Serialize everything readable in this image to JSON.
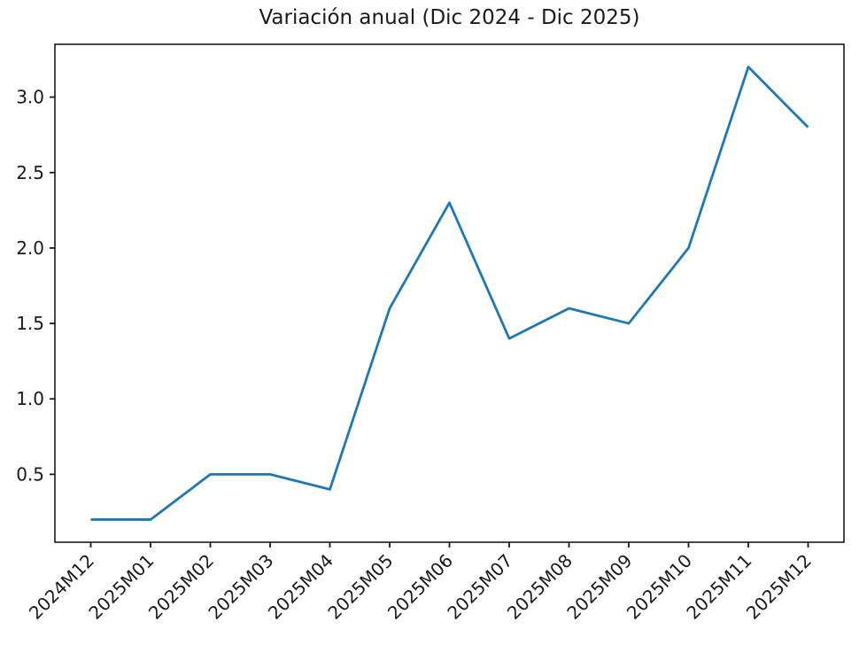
{
  "chart_data": {
    "type": "line",
    "title": "Variación anual (Dic 2024 - Dic 2025)",
    "categories": [
      "2024M12",
      "2025M01",
      "2025M02",
      "2025M03",
      "2025M04",
      "2025M05",
      "2025M06",
      "2025M07",
      "2025M08",
      "2025M09",
      "2025M10",
      "2025M11",
      "2025M12"
    ],
    "values": [
      0.2,
      0.2,
      0.5,
      0.5,
      0.4,
      1.6,
      2.3,
      1.4,
      1.6,
      1.5,
      2.0,
      3.2,
      2.8
    ],
    "xlabel": "",
    "ylabel": "",
    "yticks": [
      0.5,
      1.0,
      1.5,
      2.0,
      2.5,
      3.0
    ],
    "ylim": [
      0.05,
      3.35
    ],
    "xlim": [
      -0.6,
      12.6
    ],
    "x_tick_rotation": 45,
    "grid": false,
    "legend": "none",
    "line_color": "#1f77b4",
    "axis_color": "#1a1a1a",
    "background_color": "#ffffff"
  }
}
